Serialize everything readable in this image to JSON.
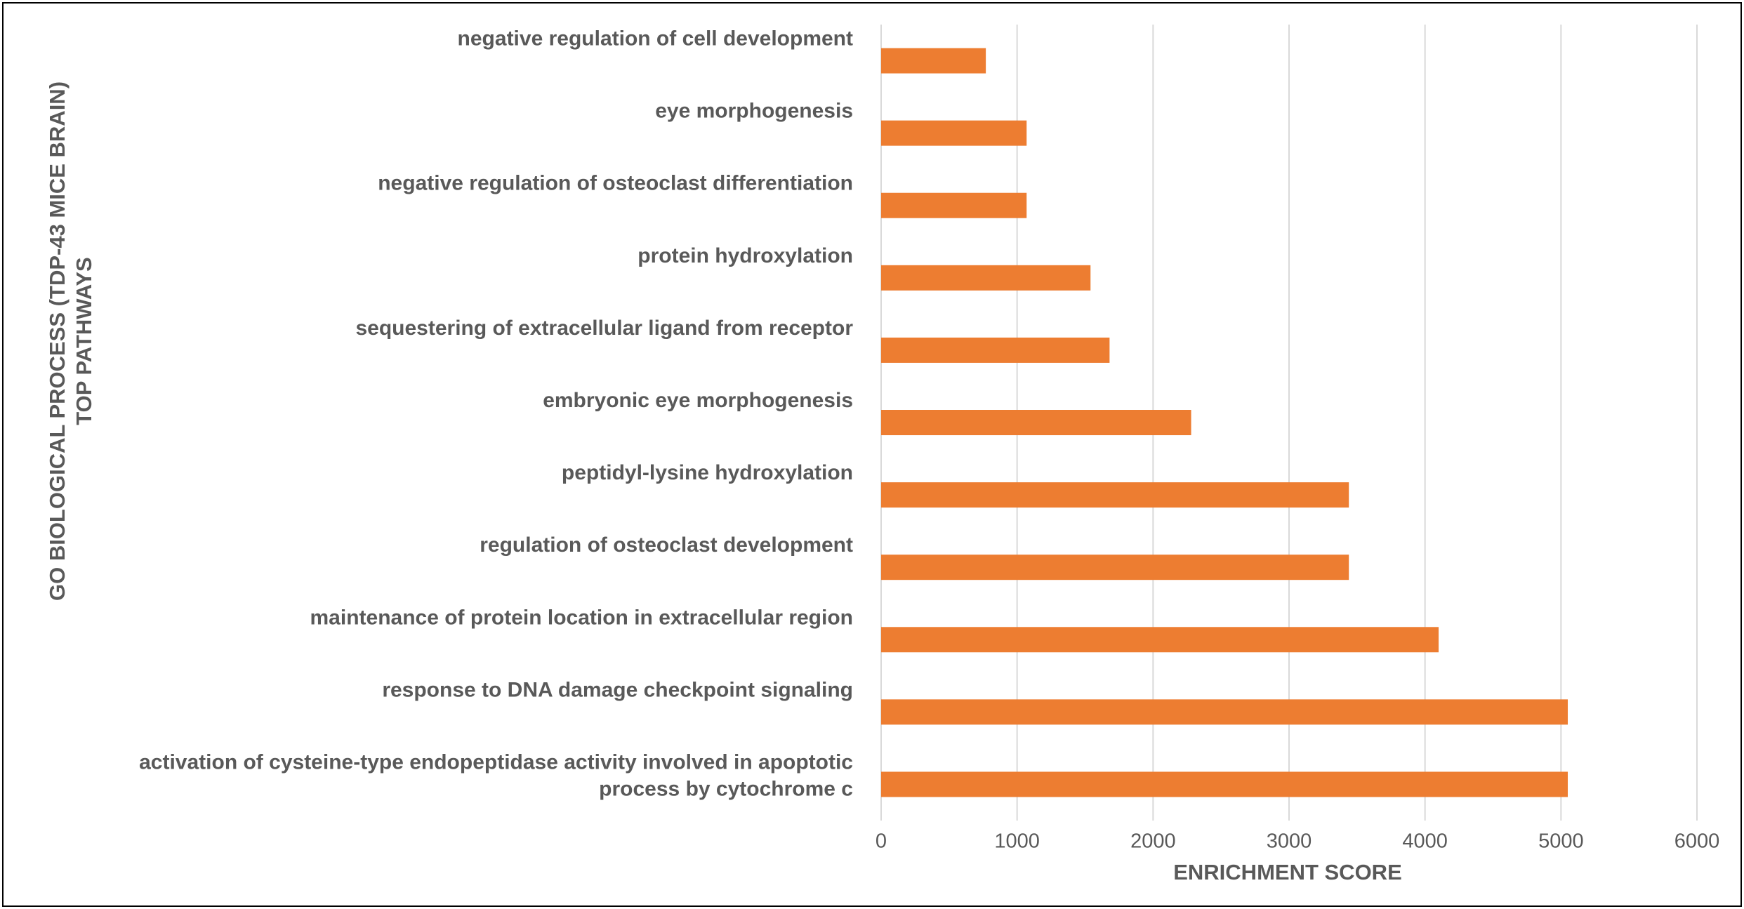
{
  "chart_data": {
    "type": "bar",
    "orientation": "horizontal",
    "y_label": [
      "GO BIOLOGICAL PROCESS (TDP-43 MICE BRAIN)",
      "TOP PATHWAYS"
    ],
    "x_label": "ENRICHMENT SCORE",
    "categories": [
      "negative regulation of cell development",
      "eye morphogenesis",
      "negative regulation of osteoclast differentiation",
      "protein hydroxylation",
      "sequestering of extracellular ligand from receptor",
      "embryonic eye morphogenesis",
      "peptidyl-lysine hydroxylation",
      "regulation of osteoclast development",
      "maintenance of protein location in extracellular region",
      "response to DNA damage checkpoint signaling",
      "activation of cysteine-type endopeptidase activity involved in apoptotic process by cytochrome c"
    ],
    "values": [
      770,
      1070,
      1070,
      1540,
      1680,
      2280,
      3440,
      3440,
      4100,
      5050,
      5050
    ],
    "color": "#ed7d31",
    "xlim": [
      0,
      6000
    ],
    "xticks": [
      0,
      1000,
      2000,
      3000,
      4000,
      5000,
      6000
    ],
    "grid": true
  }
}
